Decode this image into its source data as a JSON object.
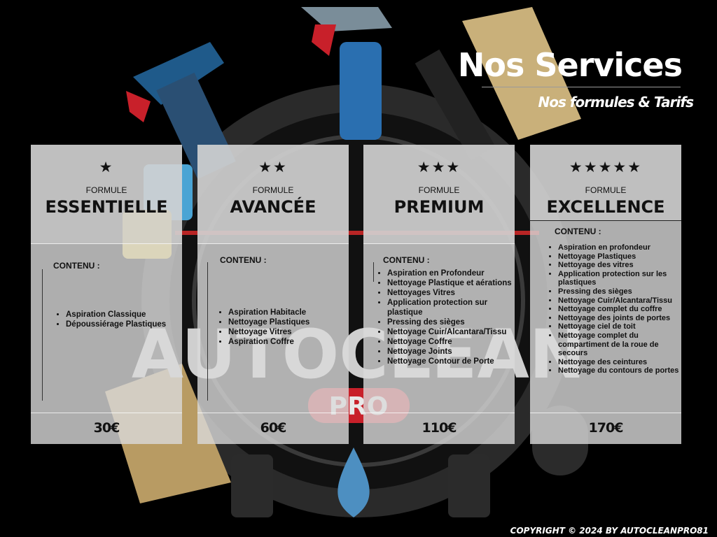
{
  "header": {
    "title": "Nos Services",
    "subtitle": "Nos formules & Tarifs"
  },
  "cards": [
    {
      "stars": "★",
      "formule": "FORMULE",
      "name": "ESSENTIELLE",
      "content_label": "CONTENU :",
      "items": [
        "Aspiration Classique",
        "Dépoussiérage Plastiques"
      ],
      "price": "30€"
    },
    {
      "stars": "★★",
      "formule": "FORMULE",
      "name": "AVANCÉE",
      "content_label": "CONTENU :",
      "items": [
        "Aspiration Habitacle",
        "Nettoyage Plastiques",
        "Nettoyage Vitres",
        "Aspiration Coffre"
      ],
      "price": "60€"
    },
    {
      "stars": "★★★",
      "formule": "FORMULE",
      "name": "PREMIUM",
      "content_label": "CONTENU :",
      "items": [
        "Aspiration en Profondeur",
        "Nettoyage Plastique et aérations",
        "Nettoyages Vitres",
        "Application protection sur plastique",
        "Pressing des sièges",
        "Nettoyage Cuir/Alcantara/Tissu",
        "Nettoyage Coffre",
        "Nettoyage Joints",
        "Nettoyage Contour de Porte"
      ],
      "price": "110€"
    },
    {
      "stars": "★★★★★",
      "formule": "FORMULE",
      "name": "EXCELLENCE",
      "content_label": "CONTENU :",
      "items": [
        "Aspiration  en profondeur",
        "Nettoyage Plastiques",
        "Nettoyage des vitres",
        "Application protection sur les plastiques",
        "Pressing des sièges",
        "Nettoyage Cuir/Alcantara/Tissu",
        "Nettoyage complet du coffre",
        "Nettoyage des joints de portes",
        "Nettoyage ciel de toit",
        "Nettoyage complet du compartiment de la roue de secours",
        "Nettoyage des ceintures",
        "Nettoyage du contours de portes"
      ],
      "price": "170€"
    }
  ],
  "footer": {
    "copyright": "COPYRIGHT © 2024 BY AUTOCLEANPRO81"
  },
  "background": {
    "logo_text": "AUTOCLEAN",
    "logo_badge": "PRO"
  },
  "colors": {
    "background": "#000000",
    "card": "#dadada",
    "logo_badge": "#c8202a"
  }
}
